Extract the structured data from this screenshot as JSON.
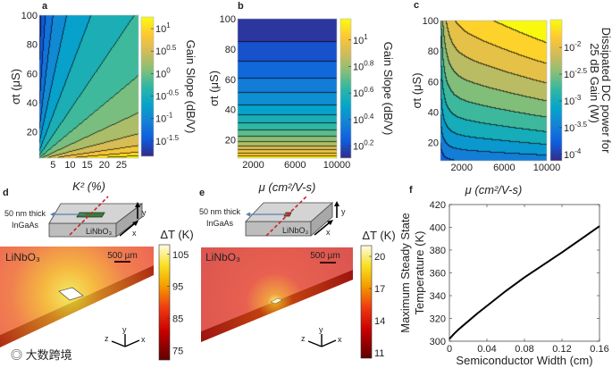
{
  "panel_labels": [
    "a",
    "b",
    "c",
    "d",
    "e",
    "f"
  ],
  "watermark": "大数跨境",
  "chart_data": [
    {
      "id": "a",
      "type": "heatmap",
      "style": "filled-contour",
      "xlabel": "K² (%)",
      "ylabel": "σt (μS)",
      "xlim": [
        1,
        30
      ],
      "ylim": [
        2,
        100
      ],
      "xticks": [
        5,
        10,
        15,
        20,
        25
      ],
      "yticks": [
        20,
        40,
        60,
        80,
        100
      ],
      "colorbar": {
        "label": "Gain Slope (dB/V)",
        "log_range": [
          -1.84,
          1.26
        ],
        "ticks": [
          "10^1",
          "10^0.5",
          "10^0",
          "10^-0.5",
          "10^-1",
          "10^-1.5"
        ],
        "tick_exponents": [
          1,
          0.5,
          0,
          -0.5,
          -1,
          -1.5
        ]
      },
      "contour_step": 0.25
    },
    {
      "id": "b",
      "type": "heatmap",
      "style": "filled-contour",
      "xlabel": "μ (cm²/V-s)",
      "ylabel": "σt (μS)",
      "xlim": [
        500,
        10000
      ],
      "ylim": [
        8,
        100
      ],
      "xticks": [
        2000,
        6000,
        10000
      ],
      "yticks": [
        20,
        40,
        60,
        80,
        100
      ],
      "colorbar": {
        "label": "Gain Slope (dB/V)",
        "log_range": [
          0.11,
          1.16
        ],
        "ticks": [
          "10^1",
          "10^0.8",
          "10^0.6",
          "10^0.4",
          "10^0.2"
        ],
        "tick_exponents": [
          1,
          0.8,
          0.6,
          0.4,
          0.2
        ]
      },
      "contour_step": 0.07
    },
    {
      "id": "c",
      "type": "heatmap",
      "style": "filled-contour",
      "xlabel": "μ (cm²/V-s)",
      "ylabel": "σt (μS)",
      "xlim": [
        0,
        10000
      ],
      "ylim": [
        8,
        100
      ],
      "xticks": [
        2000,
        6000,
        10000
      ],
      "yticks": [
        20,
        40,
        60,
        80,
        100
      ],
      "colorbar": {
        "label": "Dissipated DC power for",
        "label2": "25 dB Gain (W)",
        "log_range": [
          -4.12,
          -1.48
        ],
        "ticks": [
          "10^-2",
          "10^-2.5",
          "10^-3",
          "10^-3.5",
          "10^-4"
        ],
        "tick_exponents": [
          -2,
          -2.5,
          -3,
          -3.5,
          -4
        ]
      },
      "contour_step": 0.25
    },
    {
      "id": "d",
      "type": "heatmap",
      "style": "thermal-simulation",
      "inset": {
        "callout_line1": "50 nm thick",
        "callout_line2": "InGaAs",
        "substrate": "LiNbO₃",
        "axis_x": "x",
        "axis_y": "y"
      },
      "substrate_label": "LiNbO₃",
      "scale_bar": "500 µm",
      "triad": {
        "x": "x",
        "y": "y",
        "z": "z"
      },
      "colorbar": {
        "label": "ΔT (K)",
        "range": [
          72,
          108
        ],
        "ticks": [
          105,
          95,
          85,
          75
        ]
      }
    },
    {
      "id": "e",
      "type": "heatmap",
      "style": "thermal-simulation",
      "inset": {
        "callout_line1": "50 nm thick",
        "callout_line2": "InGaAs",
        "substrate": "LiNbO₃",
        "axis_x": "x",
        "axis_y": "y"
      },
      "substrate_label": "LiNbO₃",
      "scale_bar": "500 µm",
      "triad": {
        "x": "x",
        "y": "y",
        "z": "z"
      },
      "colorbar": {
        "label": "ΔT (K)",
        "range": [
          10.5,
          21
        ],
        "ticks": [
          20,
          17,
          14,
          11
        ]
      }
    },
    {
      "id": "f",
      "type": "line",
      "xlabel": "Semiconductor Width (cm)",
      "ylabel": "Maximum Steady State",
      "ylabel2": "Temperature (K)",
      "xlim": [
        0,
        0.16
      ],
      "ylim": [
        300,
        420
      ],
      "xticks": [
        0,
        0.04,
        0.08,
        0.12,
        0.16
      ],
      "xtick_labels": [
        "0",
        "0.04",
        "0.08",
        "0.12",
        "0.16"
      ],
      "yticks": [
        300,
        320,
        340,
        360,
        380,
        400,
        420
      ],
      "series": [
        {
          "name": "max temperature",
          "x": [
            0,
            0.005,
            0.01,
            0.02,
            0.03,
            0.04,
            0.06,
            0.08,
            0.1,
            0.12,
            0.14,
            0.16
          ],
          "y": [
            302,
            306.5,
            310.5,
            317.5,
            324.5,
            331,
            344,
            356,
            367,
            378,
            389.5,
            401
          ]
        }
      ]
    }
  ],
  "colors": {
    "line": "#000000",
    "dashed_cut": "#c0282d",
    "callout_arrow": "#5b7fb5",
    "box": "#c8c8c8"
  }
}
